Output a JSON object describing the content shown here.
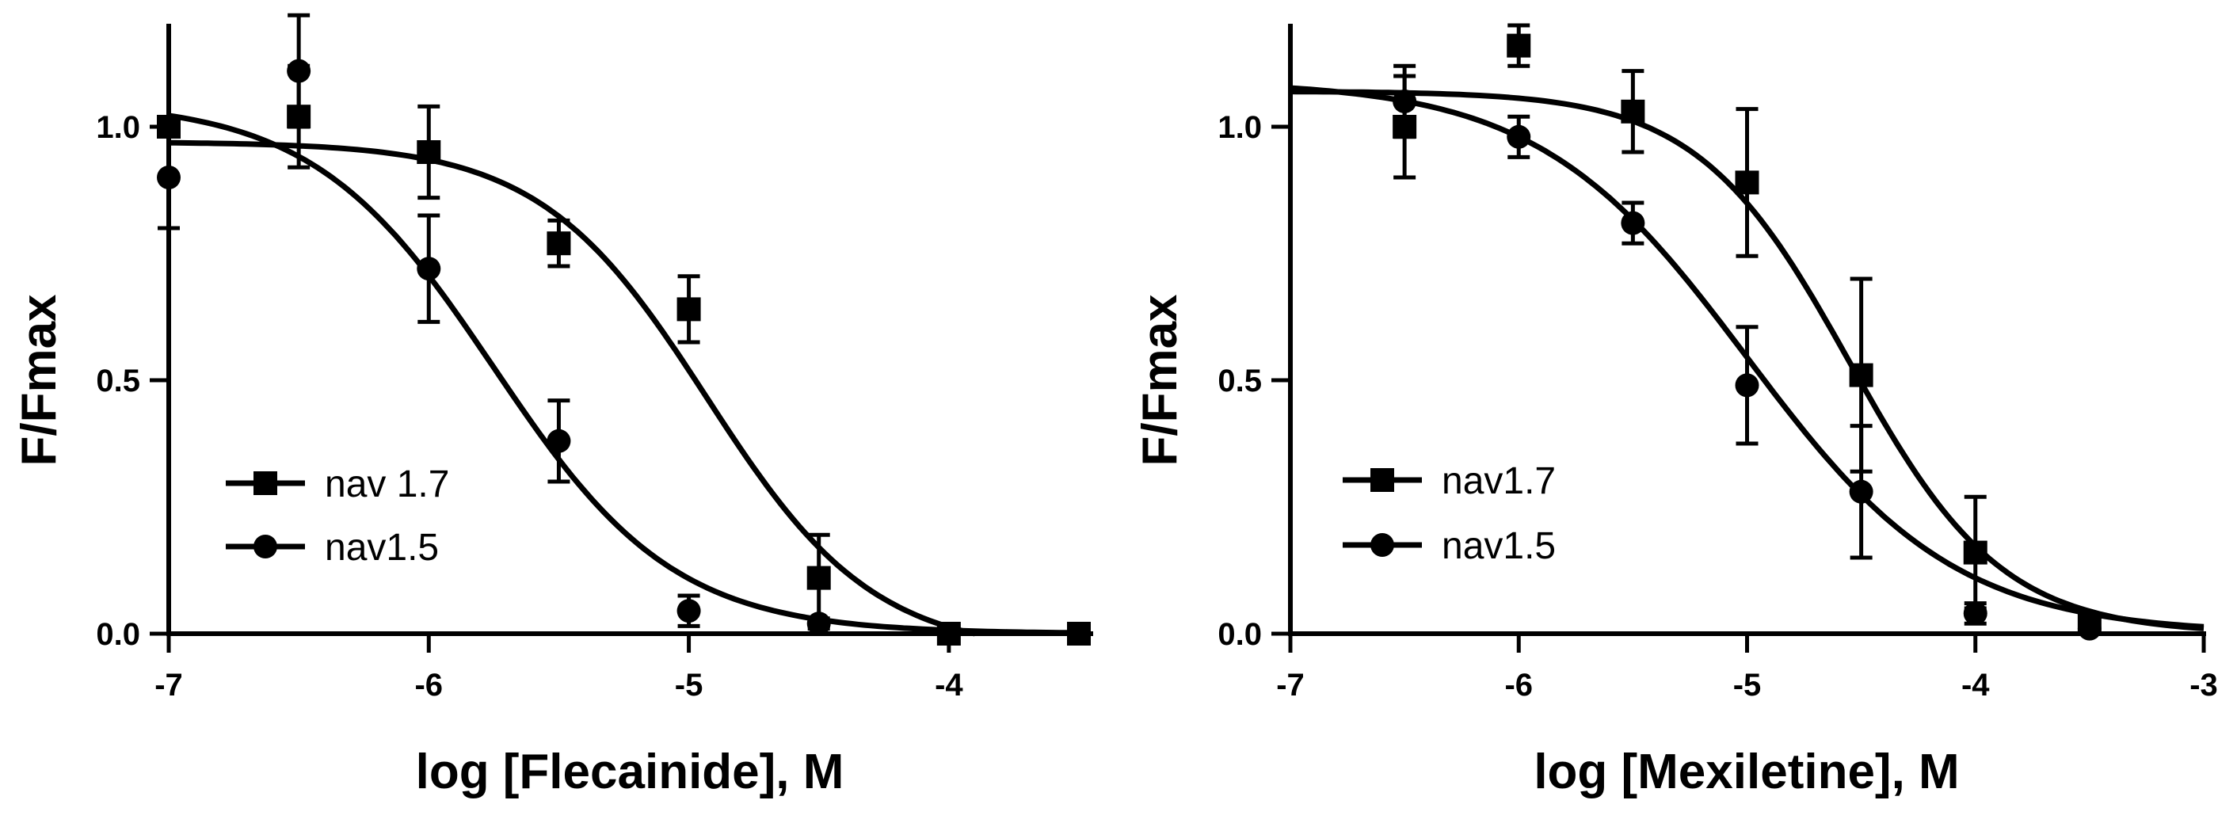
{
  "chart_data": [
    {
      "type": "scatter",
      "name": "flecainide",
      "xlabel": "log [Flecainide], M",
      "ylabel": "F/Fmax",
      "xlim": [
        -7,
        -3.5
      ],
      "ylim": [
        0,
        1.2
      ],
      "xticks": [
        -7,
        -6,
        -5,
        -4
      ],
      "xtick_labels": [
        "-7",
        "-6",
        "-5",
        "-4"
      ],
      "yticks": [
        0,
        0.5,
        1.0
      ],
      "ytick_labels": [
        "0.0",
        "0.5",
        "1.0"
      ],
      "legend_position": "bottom-left",
      "series": [
        {
          "name": "nav 1.7",
          "marker": "square",
          "points": [
            {
              "x": -7.0,
              "y": 1.0,
              "err": 0.0
            },
            {
              "x": -6.5,
              "y": 1.02,
              "err": 0.1
            },
            {
              "x": -6.0,
              "y": 0.95,
              "err": 0.09
            },
            {
              "x": -5.5,
              "y": 0.77,
              "err": 0.045
            },
            {
              "x": -5.0,
              "y": 0.64,
              "err": 0.065
            },
            {
              "x": -4.5,
              "y": 0.11,
              "err": 0.085
            },
            {
              "x": -4.0,
              "y": 0.0,
              "err": 0.0
            },
            {
              "x": -3.5,
              "y": 0.0,
              "err": 0.0
            }
          ],
          "fit": {
            "top": 0.97,
            "bottom": -0.04,
            "log_ic50": -4.93,
            "hill": 1.35
          }
        },
        {
          "name": "nav1.5",
          "marker": "circle",
          "points": [
            {
              "x": -7.0,
              "y": 0.9,
              "err": 0.1
            },
            {
              "x": -6.5,
              "y": 1.11,
              "err": 0.11
            },
            {
              "x": -6.0,
              "y": 0.72,
              "err": 0.105
            },
            {
              "x": -5.5,
              "y": 0.38,
              "err": 0.08
            },
            {
              "x": -5.0,
              "y": 0.045,
              "err": 0.03
            },
            {
              "x": -4.5,
              "y": 0.02,
              "err": 0.01
            }
          ],
          "fit": {
            "top": 1.05,
            "bottom": 0.0,
            "log_ic50": -5.75,
            "hill": 1.25
          }
        }
      ]
    },
    {
      "type": "scatter",
      "name": "mexiletine",
      "xlabel": "log [Mexiletine], M",
      "ylabel": "F/Fmax",
      "xlim": [
        -7,
        -3
      ],
      "ylim": [
        0,
        1.2
      ],
      "xticks": [
        -7,
        -6,
        -5,
        -4,
        -3
      ],
      "xtick_labels": [
        "-7",
        "-6",
        "-5",
        "-4",
        "-3"
      ],
      "yticks": [
        0,
        0.5,
        1.0
      ],
      "ytick_labels": [
        "0.0",
        "0.5",
        "1.0"
      ],
      "legend_position": "bottom-left",
      "series": [
        {
          "name": "nav1.7",
          "marker": "square",
          "points": [
            {
              "x": -6.5,
              "y": 1.0,
              "err": 0.1
            },
            {
              "x": -6.0,
              "y": 1.16,
              "err": 0.04
            },
            {
              "x": -5.5,
              "y": 1.03,
              "err": 0.08
            },
            {
              "x": -5.0,
              "y": 0.89,
              "err": 0.145
            },
            {
              "x": -4.5,
              "y": 0.51,
              "err": 0.19
            },
            {
              "x": -4.0,
              "y": 0.16,
              "err": 0.11
            },
            {
              "x": -3.5,
              "y": 0.02,
              "err": 0.0
            }
          ],
          "fit": {
            "top": 1.07,
            "bottom": 0.0,
            "log_ic50": -4.55,
            "hill": 1.3
          }
        },
        {
          "name": "nav1.5",
          "marker": "circle",
          "points": [
            {
              "x": -6.5,
              "y": 1.05,
              "err": 0.07
            },
            {
              "x": -6.0,
              "y": 0.98,
              "err": 0.04
            },
            {
              "x": -5.5,
              "y": 0.81,
              "err": 0.04
            },
            {
              "x": -5.0,
              "y": 0.49,
              "err": 0.115
            },
            {
              "x": -4.5,
              "y": 0.28,
              "err": 0.13
            },
            {
              "x": -4.0,
              "y": 0.04,
              "err": 0.02
            },
            {
              "x": -3.5,
              "y": 0.01,
              "err": 0.0
            }
          ],
          "fit": {
            "top": 1.09,
            "bottom": 0.0,
            "log_ic50": -5.0,
            "hill": 0.95
          }
        }
      ]
    }
  ]
}
